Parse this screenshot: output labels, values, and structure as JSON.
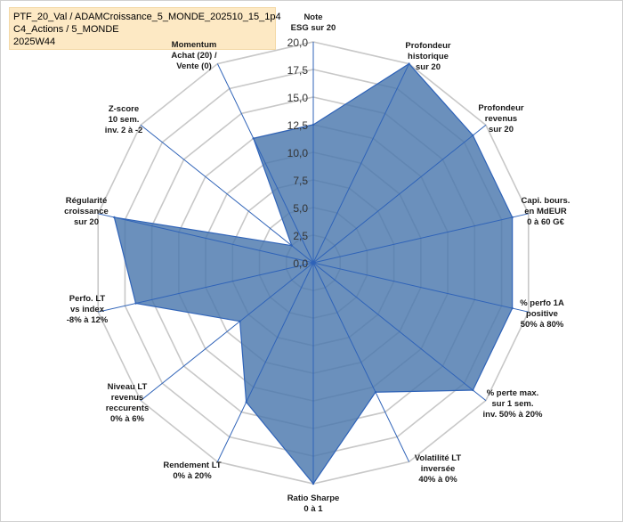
{
  "header": {
    "line1": "PTF_20_Val / ADAMCroissance_5_MONDE_202510_15_1p4",
    "line2": "C4_Actions / 5_MONDE",
    "line3": "2025W44"
  },
  "colors": {
    "fill": "#4a78ad",
    "stroke": "#2f63b8",
    "grid": "#c8c8c8",
    "title_bg": "#fde9c4"
  },
  "chart_data": {
    "type": "radar",
    "title": "",
    "rmax": 20,
    "rticks": [
      "0,0",
      "2,5",
      "5,0",
      "7,5",
      "10,0",
      "12,5",
      "15,0",
      "17,5",
      "20,0"
    ],
    "categories": [
      [
        "Note",
        "ESG sur 20"
      ],
      [
        "Profondeur",
        "historique",
        "sur 20"
      ],
      [
        "Profondeur",
        "revenus",
        "sur 20"
      ],
      [
        "Capi. bours.",
        "en MdEUR",
        "0 à 60 G€"
      ],
      [
        "% perfo 1A",
        "positive",
        "50% à 80%"
      ],
      [
        "% perte max.",
        "sur 1 sem.",
        "inv. 50% à 20%"
      ],
      [
        "Volatilité LT",
        "inversée",
        "40% à 0%"
      ],
      [
        "Ratio Sharpe",
        "0 à 1"
      ],
      [
        "Rendement LT",
        "0% à 20%"
      ],
      [
        "Niveau LT",
        "revenus",
        "reccurents",
        "0% à 6%"
      ],
      [
        "Perfo. LT",
        "vs index",
        "-8% à 12%"
      ],
      [
        "Régularité",
        "croissance",
        "sur 20"
      ],
      [
        "Z-score",
        "10 sem.",
        "inv. 2 à -2"
      ],
      [
        "Momentum",
        "Achat (20) /",
        "Vente (0)"
      ]
    ],
    "series": [
      {
        "values": [
          12.5,
          20,
          18.5,
          18.5,
          18.5,
          18.5,
          13,
          20,
          14,
          8.5,
          16.5,
          18.5,
          2.5,
          12.5
        ]
      }
    ]
  }
}
